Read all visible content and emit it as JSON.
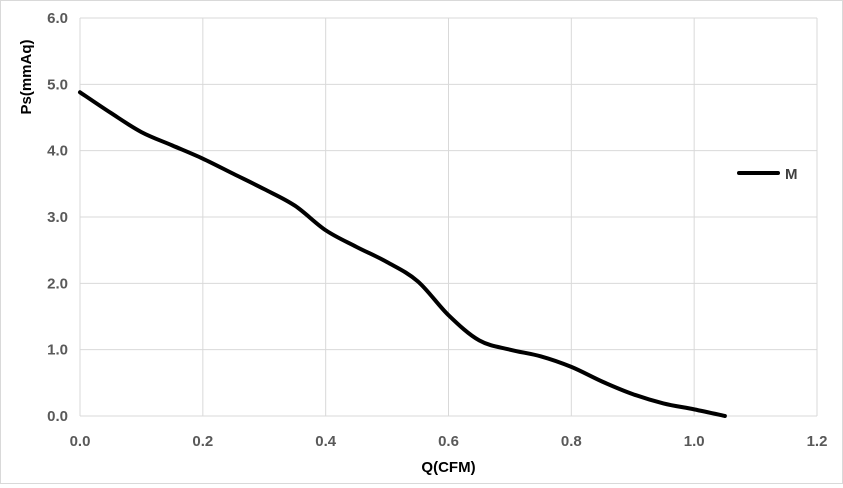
{
  "chart_data": {
    "type": "line",
    "title": "",
    "xlabel": "Q(CFM)",
    "ylabel": "Ps(mmAq)",
    "xlim": [
      0.0,
      1.2
    ],
    "ylim": [
      0.0,
      6.0
    ],
    "x_ticks": [
      "0.0",
      "0.2",
      "0.4",
      "0.6",
      "0.8",
      "1.0",
      "1.2"
    ],
    "y_ticks": [
      "0.0",
      "1.0",
      "2.0",
      "3.0",
      "4.0",
      "5.0",
      "6.0"
    ],
    "grid": true,
    "legend_position": "right",
    "line_color": "#000000",
    "series": [
      {
        "name": "M",
        "x": [
          0.0,
          0.05,
          0.1,
          0.15,
          0.2,
          0.25,
          0.3,
          0.35,
          0.4,
          0.45,
          0.5,
          0.55,
          0.6,
          0.65,
          0.7,
          0.75,
          0.8,
          0.85,
          0.9,
          0.95,
          1.0,
          1.05
        ],
        "y": [
          4.88,
          4.57,
          4.28,
          4.08,
          3.88,
          3.65,
          3.42,
          3.17,
          2.8,
          2.55,
          2.32,
          2.03,
          1.52,
          1.14,
          1.0,
          0.9,
          0.74,
          0.52,
          0.33,
          0.19,
          0.1,
          0.0
        ]
      }
    ]
  }
}
